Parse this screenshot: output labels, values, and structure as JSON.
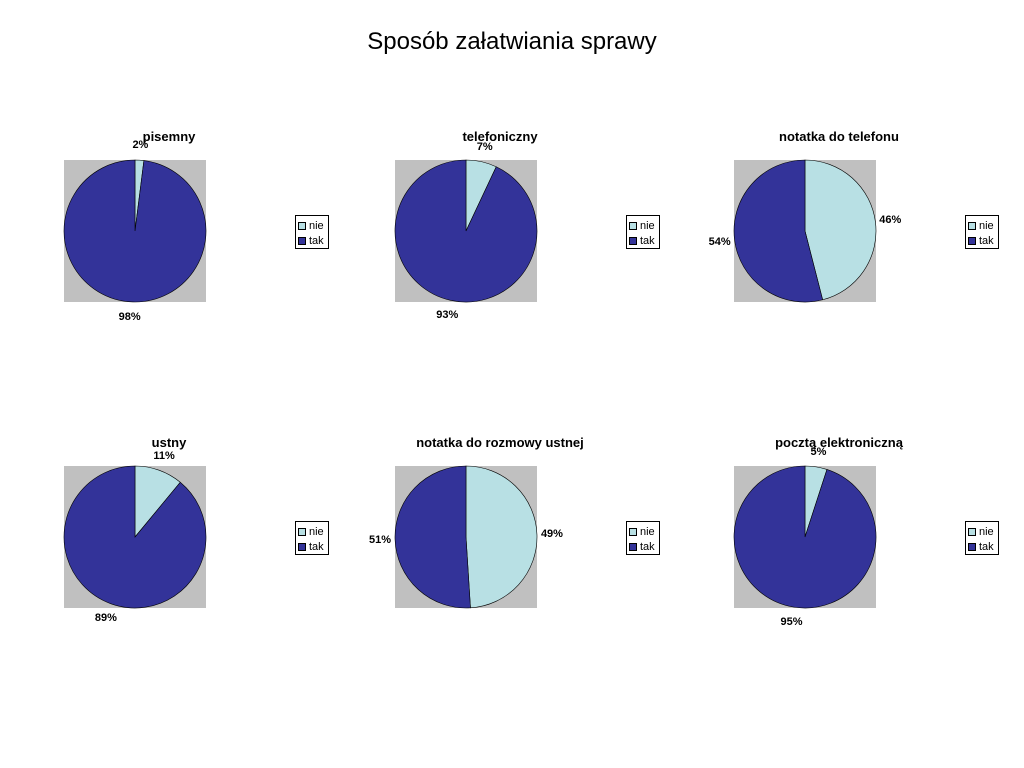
{
  "title": "Sposób załatwiania sprawy",
  "colors": {
    "nie": "#b8e0e4",
    "tak": "#333399",
    "plot_bg": "#c0c0c0"
  },
  "legend": [
    "nie",
    "tak"
  ],
  "chart_data": [
    {
      "type": "pie",
      "title": "pisemny",
      "categories": [
        "nie",
        "tak"
      ],
      "values": [
        2,
        98
      ],
      "labels": [
        "2%",
        "98%"
      ]
    },
    {
      "type": "pie",
      "title": "telefoniczny",
      "categories": [
        "nie",
        "tak"
      ],
      "values": [
        7,
        93
      ],
      "labels": [
        "7%",
        "93%"
      ]
    },
    {
      "type": "pie",
      "title": "notatka do telefonu",
      "categories": [
        "nie",
        "tak"
      ],
      "values": [
        46,
        54
      ],
      "labels": [
        "46%",
        "54%"
      ]
    },
    {
      "type": "pie",
      "title": "ustny",
      "categories": [
        "nie",
        "tak"
      ],
      "values": [
        11,
        89
      ],
      "labels": [
        "11%",
        "89%"
      ]
    },
    {
      "type": "pie",
      "title": "notatka do rozmowy ustnej",
      "categories": [
        "nie",
        "tak"
      ],
      "values": [
        49,
        51
      ],
      "labels": [
        "49%",
        "51%"
      ]
    },
    {
      "type": "pie",
      "title": "pocztą elektroniczną",
      "categories": [
        "nie",
        "tak"
      ],
      "values": [
        5,
        95
      ],
      "labels": [
        "5%",
        "95%"
      ]
    }
  ]
}
